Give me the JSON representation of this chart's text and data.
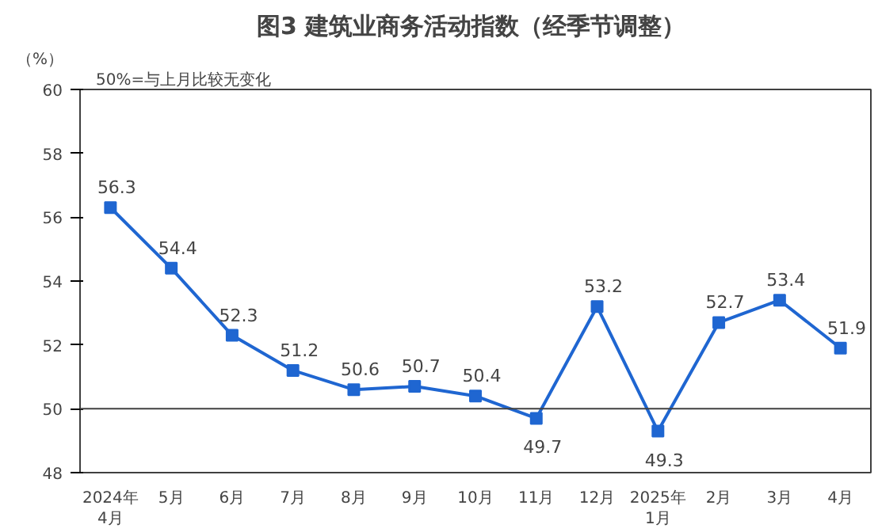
{
  "chart_data": {
    "type": "line",
    "title": "图3  建筑业商务活动指数（经季节调整）",
    "ylabel": "（%）",
    "annotations": [
      "50%=与上月比较无变化"
    ],
    "categories": [
      "2024年\n4月",
      "5月",
      "6月",
      "7月",
      "8月",
      "9月",
      "10月",
      "11月",
      "12月",
      "2025年\n1月",
      "2月",
      "3月",
      "4月"
    ],
    "series": [
      {
        "color": "#1f66d1",
        "values": [
          56.3,
          54.4,
          52.3,
          51.2,
          50.6,
          50.7,
          50.4,
          49.7,
          53.2,
          49.3,
          52.7,
          53.4,
          51.9
        ]
      }
    ],
    "ylim": [
      48,
      60
    ],
    "yticks": [
      48,
      50,
      52,
      54,
      56,
      58,
      60
    ],
    "ref_lines": [
      {
        "axis": "y",
        "value": 50,
        "color": "#404040"
      }
    ],
    "data_labels": true,
    "marker": "square",
    "line_style": "solid",
    "grid": false
  }
}
